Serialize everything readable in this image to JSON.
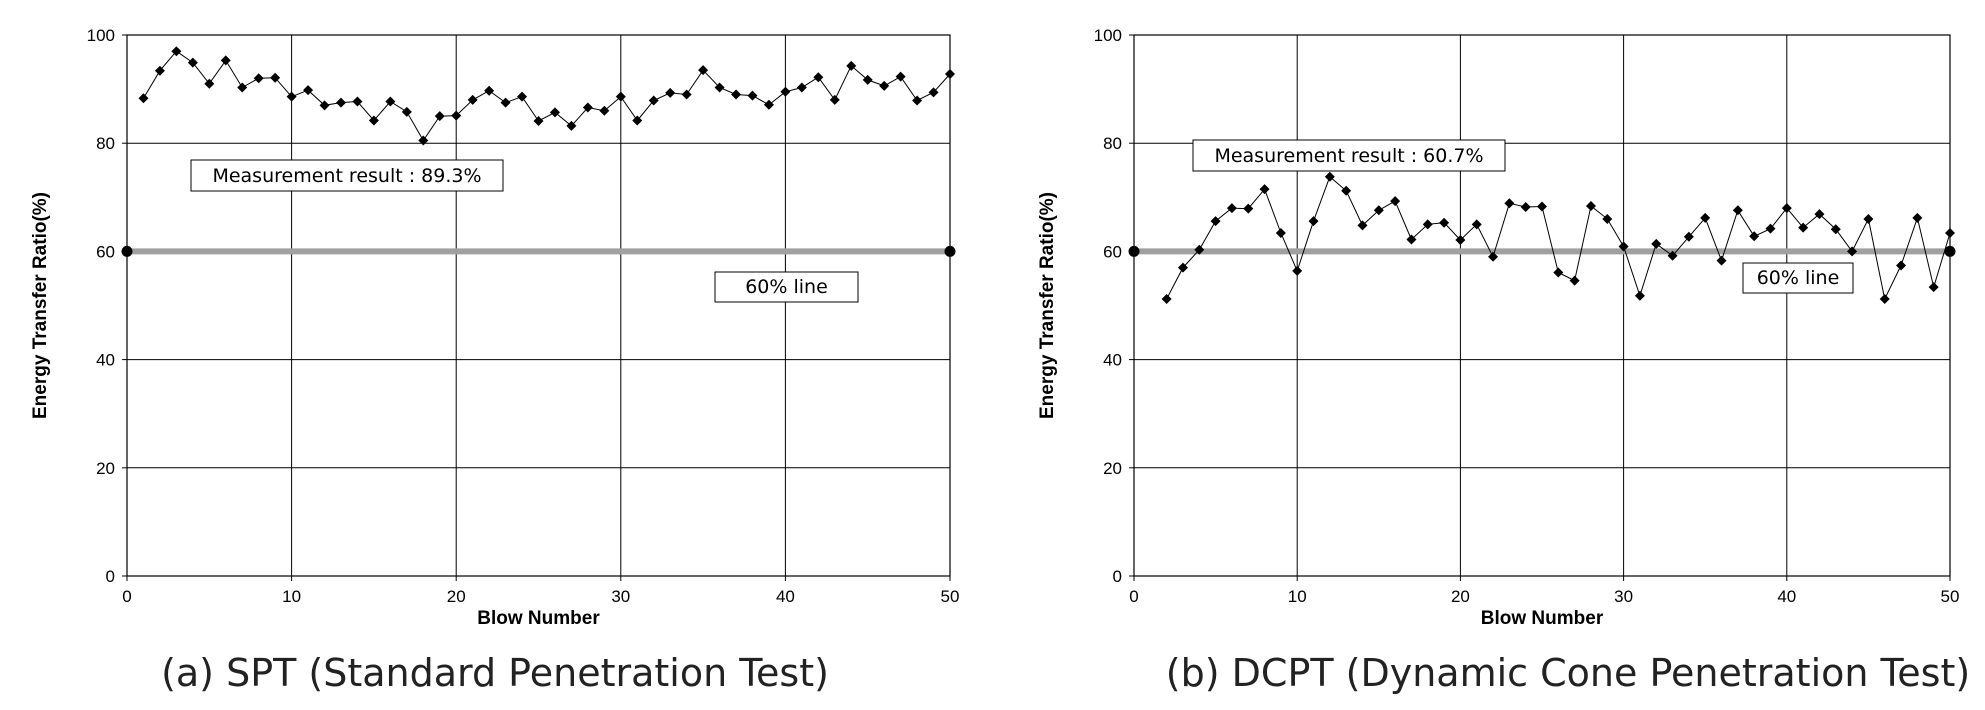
{
  "chart_data": [
    {
      "type": "line",
      "caption": "(a) SPT (Standard Penetration Test)",
      "xlabel": "Blow Number",
      "ylabel": "Energy Transfer Ratio(%)",
      "xlim": [
        0,
        50
      ],
      "ylim": [
        0,
        100
      ],
      "xticks": [
        0,
        10,
        20,
        30,
        40,
        50
      ],
      "yticks": [
        0,
        20,
        40,
        60,
        80,
        100
      ],
      "grid": true,
      "reference_line": {
        "y": 60,
        "label": "60%  line",
        "color": "#a0a0a0"
      },
      "annotation": "Measurement result :  89.3%",
      "series": [
        {
          "x": [
            1,
            2,
            3,
            4,
            5,
            6,
            7,
            8,
            9,
            10,
            11,
            12,
            13,
            14,
            15,
            16,
            17,
            18,
            19,
            20,
            21,
            22,
            23,
            24,
            25,
            26,
            27,
            28,
            29,
            30,
            31,
            32,
            33,
            34,
            35,
            36,
            37,
            38,
            39,
            40,
            41,
            42,
            43,
            44,
            45,
            46,
            47,
            48,
            49,
            50
          ],
          "y": [
            88.3,
            93.4,
            97.0,
            94.9,
            91.0,
            95.3,
            90.3,
            92.0,
            92.1,
            88.6,
            89.8,
            87.0,
            87.5,
            87.7,
            84.2,
            87.7,
            85.8,
            80.5,
            85.0,
            85.1,
            88.0,
            89.7,
            87.5,
            88.6,
            84.1,
            85.7,
            83.2,
            86.6,
            86.0,
            88.6,
            84.2,
            87.9,
            89.3,
            89.0,
            93.5,
            90.3,
            89.0,
            88.8,
            87.1,
            89.5,
            90.3,
            92.2,
            88.0,
            94.3,
            91.7,
            90.6,
            92.3,
            87.9,
            89.4,
            92.8
          ]
        }
      ]
    },
    {
      "type": "line",
      "caption": "(b) DCPT (Dynamic Cone Penetration Test)",
      "xlabel": "Blow Number",
      "ylabel": "Energy Transfer Ratio(%)",
      "xlim": [
        0,
        50
      ],
      "ylim": [
        0,
        100
      ],
      "xticks": [
        0,
        10,
        20,
        30,
        40,
        50
      ],
      "yticks": [
        0,
        20,
        40,
        60,
        80,
        100
      ],
      "grid": true,
      "reference_line": {
        "y": 60,
        "label": "60%  line",
        "color": "#a0a0a0"
      },
      "annotation": "Measurement result :  60.7%",
      "series": [
        {
          "x": [
            2,
            3,
            4,
            5,
            6,
            7,
            8,
            9,
            10,
            11,
            12,
            13,
            14,
            15,
            16,
            17,
            18,
            19,
            20,
            21,
            22,
            23,
            24,
            25,
            26,
            27,
            28,
            29,
            30,
            31,
            32,
            33,
            34,
            35,
            36,
            37,
            38,
            39,
            40,
            41,
            42,
            43,
            44,
            45,
            46,
            47,
            48,
            49,
            50
          ],
          "y": [
            51.2,
            57.0,
            60.3,
            65.6,
            68.0,
            67.9,
            71.5,
            63.4,
            56.4,
            65.6,
            73.8,
            71.2,
            64.8,
            67.6,
            69.3,
            62.2,
            65.0,
            65.3,
            62.1,
            65.0,
            59.0,
            68.9,
            68.2,
            68.3,
            56.1,
            54.6,
            68.4,
            66.0,
            60.9,
            51.8,
            61.4,
            59.2,
            62.7,
            66.2,
            58.3,
            67.6,
            62.8,
            64.2,
            68.0,
            64.4,
            66.9,
            64.1,
            60.0,
            66.0,
            51.2,
            57.4,
            66.2,
            53.4,
            63.4
          ]
        }
      ]
    }
  ]
}
